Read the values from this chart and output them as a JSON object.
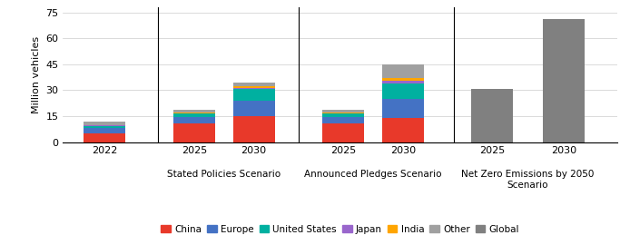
{
  "groups": [
    {
      "label": "",
      "bars": [
        {
          "x_label": "2022",
          "China": 5,
          "Europe": 3,
          "United States": 1.5,
          "Japan": 0.2,
          "India": 0.1,
          "Other": 2.0,
          "Global": 0
        }
      ]
    },
    {
      "label": "Stated Policies Scenario",
      "bars": [
        {
          "x_label": "2025",
          "China": 11,
          "Europe": 3.5,
          "United States": 2.0,
          "Japan": 0.3,
          "India": 0.2,
          "Other": 1.5,
          "Global": 0
        },
        {
          "x_label": "2030",
          "China": 15,
          "Europe": 9,
          "United States": 7,
          "Japan": 0.4,
          "India": 0.8,
          "Other": 2.5,
          "Global": 0
        }
      ]
    },
    {
      "label": "Announced Pledges Scenario",
      "bars": [
        {
          "x_label": "2025",
          "China": 11,
          "Europe": 3.5,
          "United States": 2.0,
          "Japan": 0.3,
          "India": 0.2,
          "Other": 1.5,
          "Global": 0
        },
        {
          "x_label": "2030",
          "China": 14,
          "Europe": 11,
          "United States": 9,
          "Japan": 1.5,
          "India": 1.5,
          "Other": 8,
          "Global": 0
        }
      ]
    },
    {
      "label": "Net Zero Emissions by 2050\nScenario",
      "bars": [
        {
          "x_label": "2025",
          "China": 0,
          "Europe": 0,
          "United States": 0,
          "Japan": 0,
          "India": 0,
          "Other": 0,
          "Global": 31
        },
        {
          "x_label": "2030",
          "China": 0,
          "Europe": 0,
          "United States": 0,
          "Japan": 0,
          "India": 0,
          "Other": 0,
          "Global": 71
        }
      ]
    }
  ],
  "colors": {
    "China": "#E8392A",
    "Europe": "#4472C4",
    "United States": "#00B0A0",
    "Japan": "#9966CC",
    "India": "#FFA500",
    "Other": "#A0A0A0",
    "Global": "#808080"
  },
  "legend_order": [
    "China",
    "Europe",
    "United States",
    "Japan",
    "India",
    "Other",
    "Global"
  ],
  "ylabel": "Million vehicles",
  "ylim": [
    0,
    78
  ],
  "yticks": [
    0,
    15,
    30,
    45,
    60,
    75
  ],
  "background_color": "#ffffff",
  "bar_width": 0.7
}
